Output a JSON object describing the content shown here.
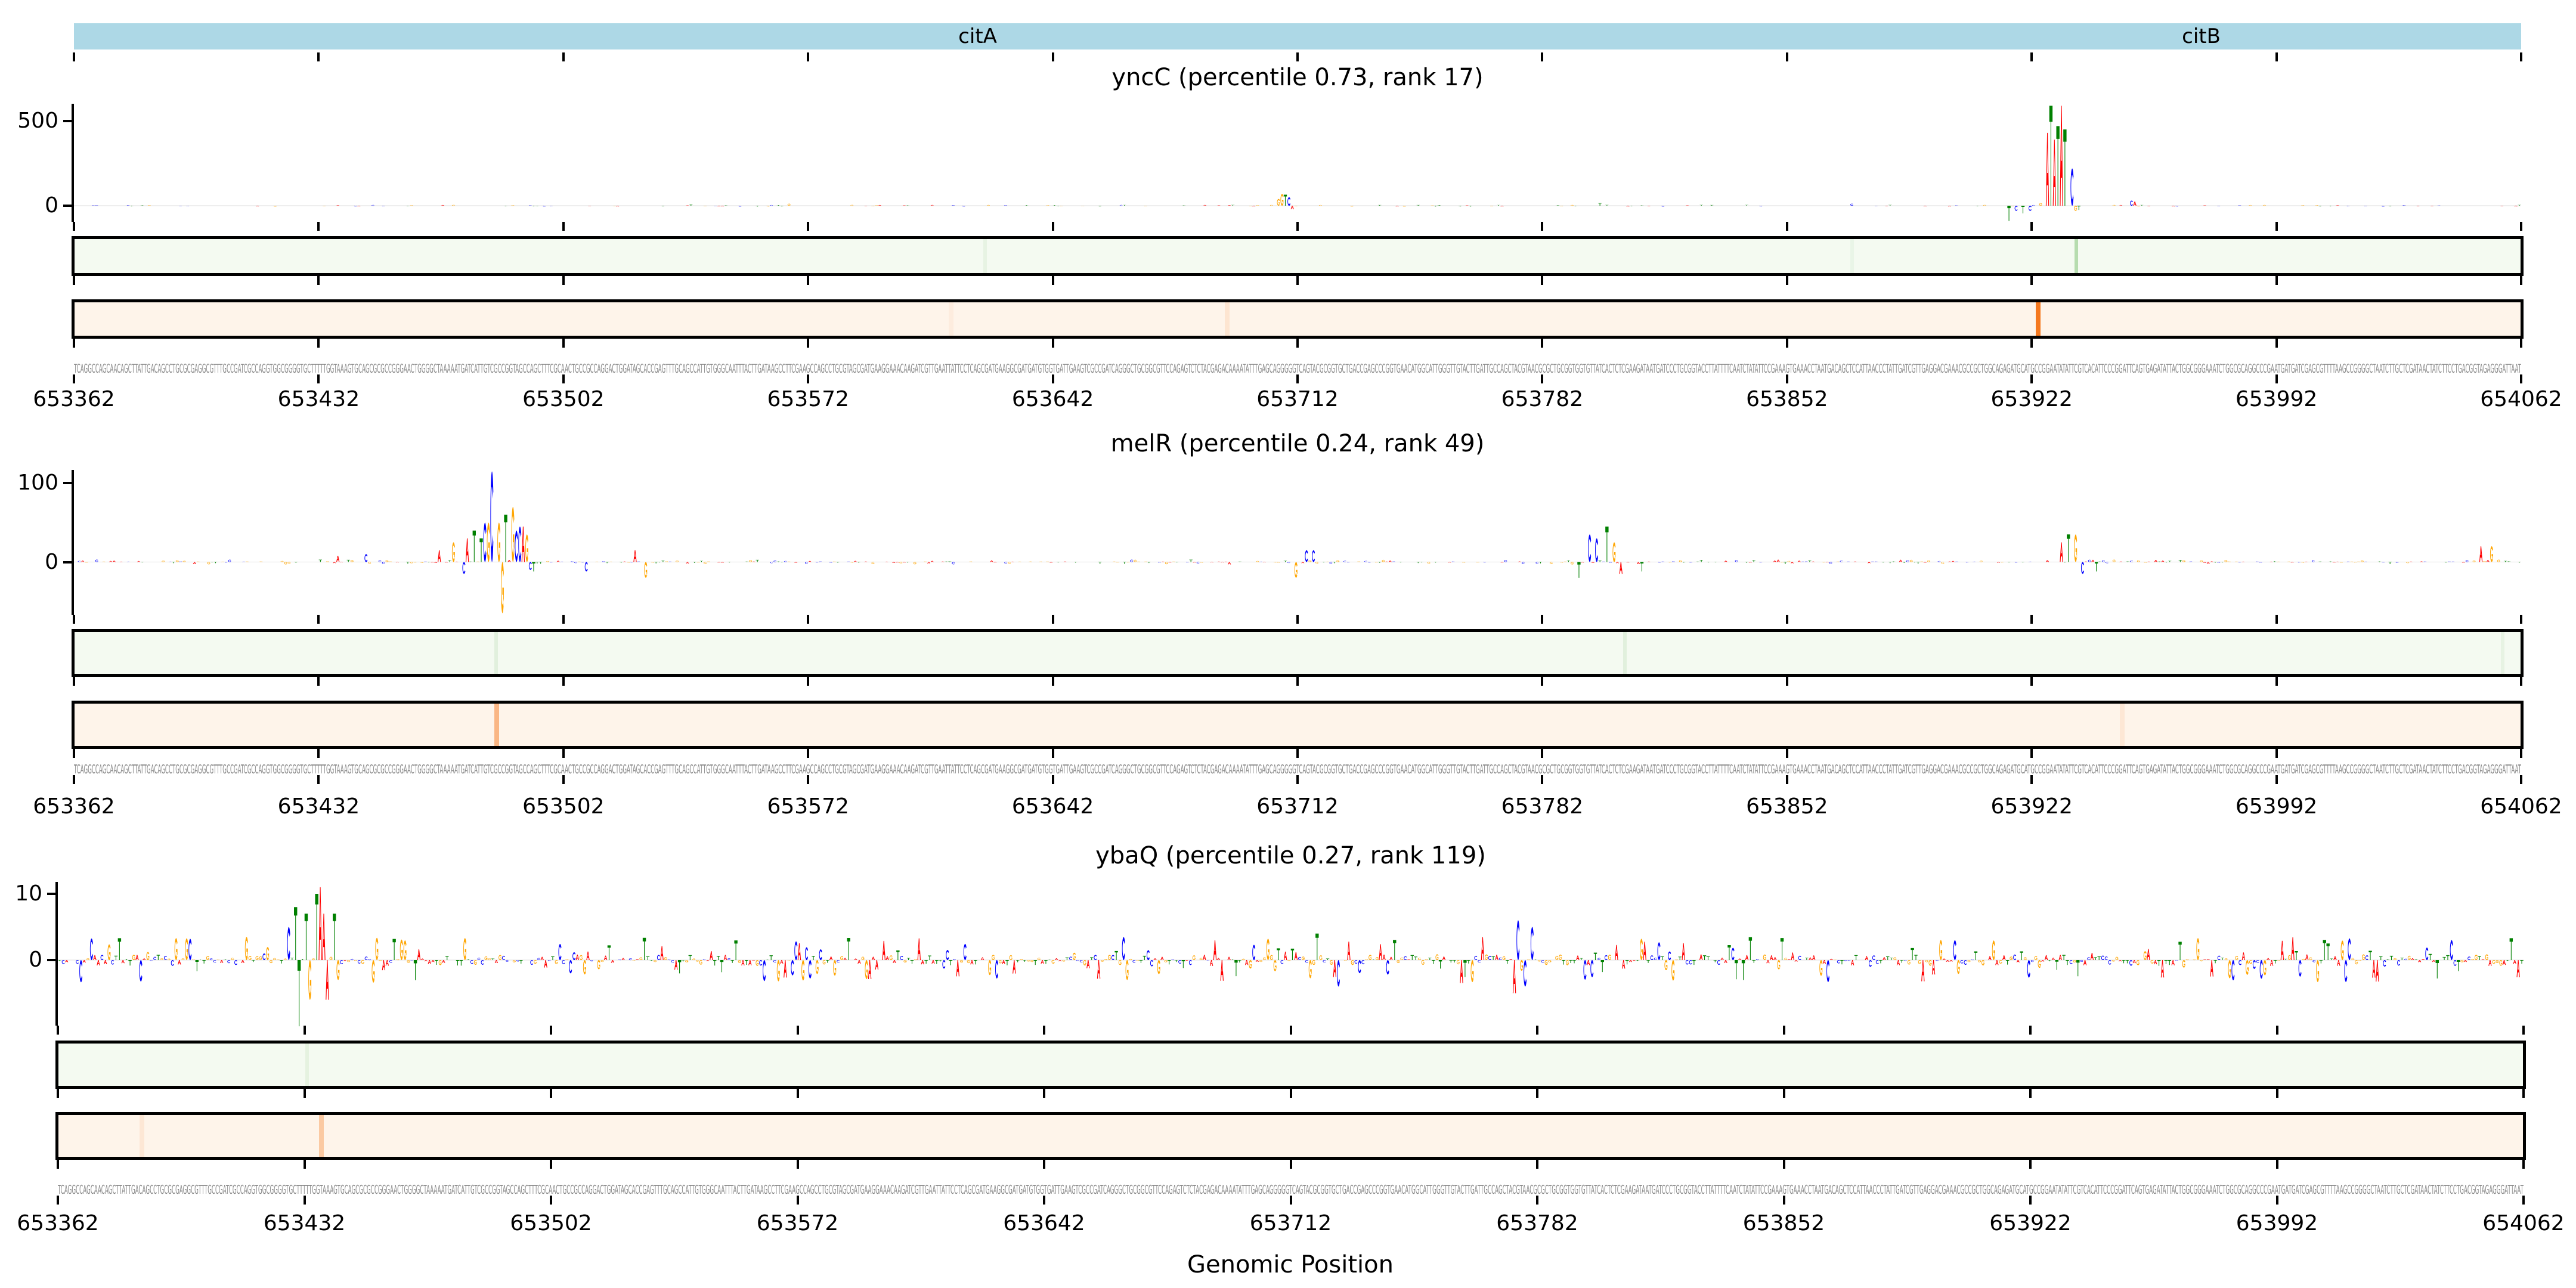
{
  "genes": [
    {
      "name": "citA",
      "start": 653362,
      "end": 653879
    },
    {
      "name": "citB",
      "start": 653879,
      "end": 654062
    }
  ],
  "x_axis": {
    "ticks": [
      653362,
      653432,
      653502,
      653572,
      653642,
      653712,
      653782,
      653852,
      653922,
      653992,
      654062
    ],
    "label": "Genomic Position"
  },
  "sequence": "TCAGGCCAGCAACAGCTTATTGACAGCCTGCGCGAGGCGTTTGCCGATCGCCAGGTGGCGGGGTGCTTTTTGGTAAAGTGCAGCGCGCCGGGAACTGGGGCTAAAAATGATCATTGTCGCCGGTAGCCAGCTTTCGCAACTGCCGCCAGGACTGGATAGCACCGAGTTTGCAGCCATTGTGGGCAATTTACTTGATAAGCCTTCGAAGCCAGCCTGCGTAGCGATGAAGGAAACAAGATCGTTGAATTATTCCTCAGCGATGAAGGCGATGATGTGGTGATTGAAGTCGCCGATCAGGGCTGCGGCGTTCCAGAGTCTCTACGAGACAAAATATTTGAGCAGGGGGTCAGTACGCGGTGCTGACCGAGCCCGGTGAACATGGCATTGGGTTGTACTTGATTGCCAGCTACGTAACGCGCTGCGGTGGTGTTATCACTCTCGAAGATAATGATCCCTGCGGTACCTTATTTTCAATCTATATTCCGAAAGTGAAACCTAATGACAGCTCCATTAACCCTATTGATCGTTGAGGACGAAACGCCGCTGGCAGAGATGCATGCCGGAATATATTCGTCACATTCCCGGATTCAGTGAGATATTACTGGCGGGAAATCTGGCGCAGGCCCGAATGATGATCGAGCGTTTTAAGCCGGGGCTAATCTTGCTCGATAACTATCTTCCTGACGGTAGAGGGATTAAT",
  "base_colors": {
    "A": "#ff0000",
    "C": "#0000ff",
    "G": "#ffa500",
    "T": "#008000"
  },
  "chart_data": [
    {
      "type": "sequence-logo",
      "title": "yncC (percentile 0.73, rank 17)",
      "ylim": [
        -95,
        602
      ],
      "yticks": [
        {
          "value": 500,
          "label": "500"
        },
        {
          "value": 0,
          "label": "0"
        }
      ],
      "xlim": [
        653362,
        654062
      ],
      "noise_amplitude": 5,
      "peaks": [
        [
          653538,
          8
        ],
        [
          653566,
          12
        ],
        [
          653706,
          40
        ],
        [
          653707,
          70
        ],
        [
          653708,
          65
        ],
        [
          653709,
          50
        ],
        [
          653710,
          -20
        ],
        [
          653798,
          15
        ],
        [
          653870,
          12
        ],
        [
          653915,
          -90
        ],
        [
          653917,
          -30
        ],
        [
          653919,
          -45
        ],
        [
          653921,
          -30
        ],
        [
          653924,
          15
        ],
        [
          653926,
          430
        ],
        [
          653927,
          590
        ],
        [
          653928,
          390
        ],
        [
          653929,
          470
        ],
        [
          653930,
          590
        ],
        [
          653931,
          450
        ],
        [
          653933,
          220
        ],
        [
          653934,
          -30
        ],
        [
          653935,
          -25
        ],
        [
          653950,
          30
        ],
        [
          653951,
          25
        ]
      ],
      "green_highlights": [
        [
          653934,
          0.5
        ],
        [
          653622,
          0.1
        ],
        [
          653870,
          0.08
        ]
      ],
      "orange_highlights": [
        [
          653923,
          1.0
        ],
        [
          653691,
          0.12
        ],
        [
          653612,
          0.06
        ]
      ]
    },
    {
      "type": "sequence-logo",
      "title": "melR (percentile 0.24, rank 49)",
      "ylim": [
        -67,
        117
      ],
      "yticks": [
        {
          "value": 100,
          "label": "100"
        },
        {
          "value": 0,
          "label": "0"
        }
      ],
      "xlim": [
        653362,
        654062
      ],
      "noise_amplitude": 3,
      "peaks": [
        [
          653437,
          8
        ],
        [
          653445,
          10
        ],
        [
          653466,
          15
        ],
        [
          653470,
          25
        ],
        [
          653473,
          -15
        ],
        [
          653474,
          30
        ],
        [
          653476,
          40
        ],
        [
          653478,
          30
        ],
        [
          653479,
          50
        ],
        [
          653480,
          50
        ],
        [
          653481,
          115
        ],
        [
          653483,
          50
        ],
        [
          653484,
          -65
        ],
        [
          653485,
          60
        ],
        [
          653487,
          70
        ],
        [
          653488,
          40
        ],
        [
          653489,
          45
        ],
        [
          653490,
          45
        ],
        [
          653491,
          35
        ],
        [
          653492,
          -10
        ],
        [
          653493,
          -12
        ],
        [
          653508,
          -12
        ],
        [
          653522,
          15
        ],
        [
          653525,
          -20
        ],
        [
          653711,
          -20
        ],
        [
          653714,
          15
        ],
        [
          653716,
          15
        ],
        [
          653792,
          -20
        ],
        [
          653795,
          35
        ],
        [
          653797,
          30
        ],
        [
          653800,
          45
        ],
        [
          653802,
          25
        ],
        [
          653804,
          -15
        ],
        [
          653810,
          -12
        ],
        [
          653930,
          25
        ],
        [
          653932,
          35
        ],
        [
          653934,
          35
        ],
        [
          653936,
          -15
        ],
        [
          653940,
          -12
        ],
        [
          654050,
          20
        ],
        [
          654053,
          20
        ]
      ],
      "green_highlights": [
        [
          653482,
          0.15
        ],
        [
          653805,
          0.15
        ],
        [
          654056,
          0.1
        ]
      ],
      "orange_highlights": [
        [
          653482,
          0.5
        ],
        [
          653947,
          0.1
        ]
      ]
    },
    {
      "type": "sequence-logo",
      "title": "ybaQ (percentile 0.27, rank 119)",
      "ylim": [
        -9.9,
        11.8
      ],
      "yticks": [
        {
          "value": 10,
          "label": "10"
        },
        {
          "value": 0,
          "label": "0"
        }
      ],
      "xlim": [
        653362,
        654062
      ],
      "noise_amplitude": 3.5,
      "peaks": [
        [
          653427,
          5
        ],
        [
          653429,
          8
        ],
        [
          653430,
          -10
        ],
        [
          653432,
          7
        ],
        [
          653433,
          -6
        ],
        [
          653435,
          10
        ],
        [
          653436,
          11
        ],
        [
          653437,
          7
        ],
        [
          653438,
          -6
        ],
        [
          653440,
          7
        ],
        [
          653441,
          -3
        ],
        [
          653690,
          3
        ],
        [
          653719,
          4
        ],
        [
          653725,
          -4
        ],
        [
          653775,
          -5
        ],
        [
          653776,
          6
        ],
        [
          653778,
          -4
        ],
        [
          653780,
          5
        ],
        [
          653900,
          3
        ]
      ],
      "green_highlights": [
        [
          653432,
          0.12
        ]
      ],
      "orange_highlights": [
        [
          653436,
          0.35
        ],
        [
          653385,
          0.1
        ]
      ]
    }
  ]
}
